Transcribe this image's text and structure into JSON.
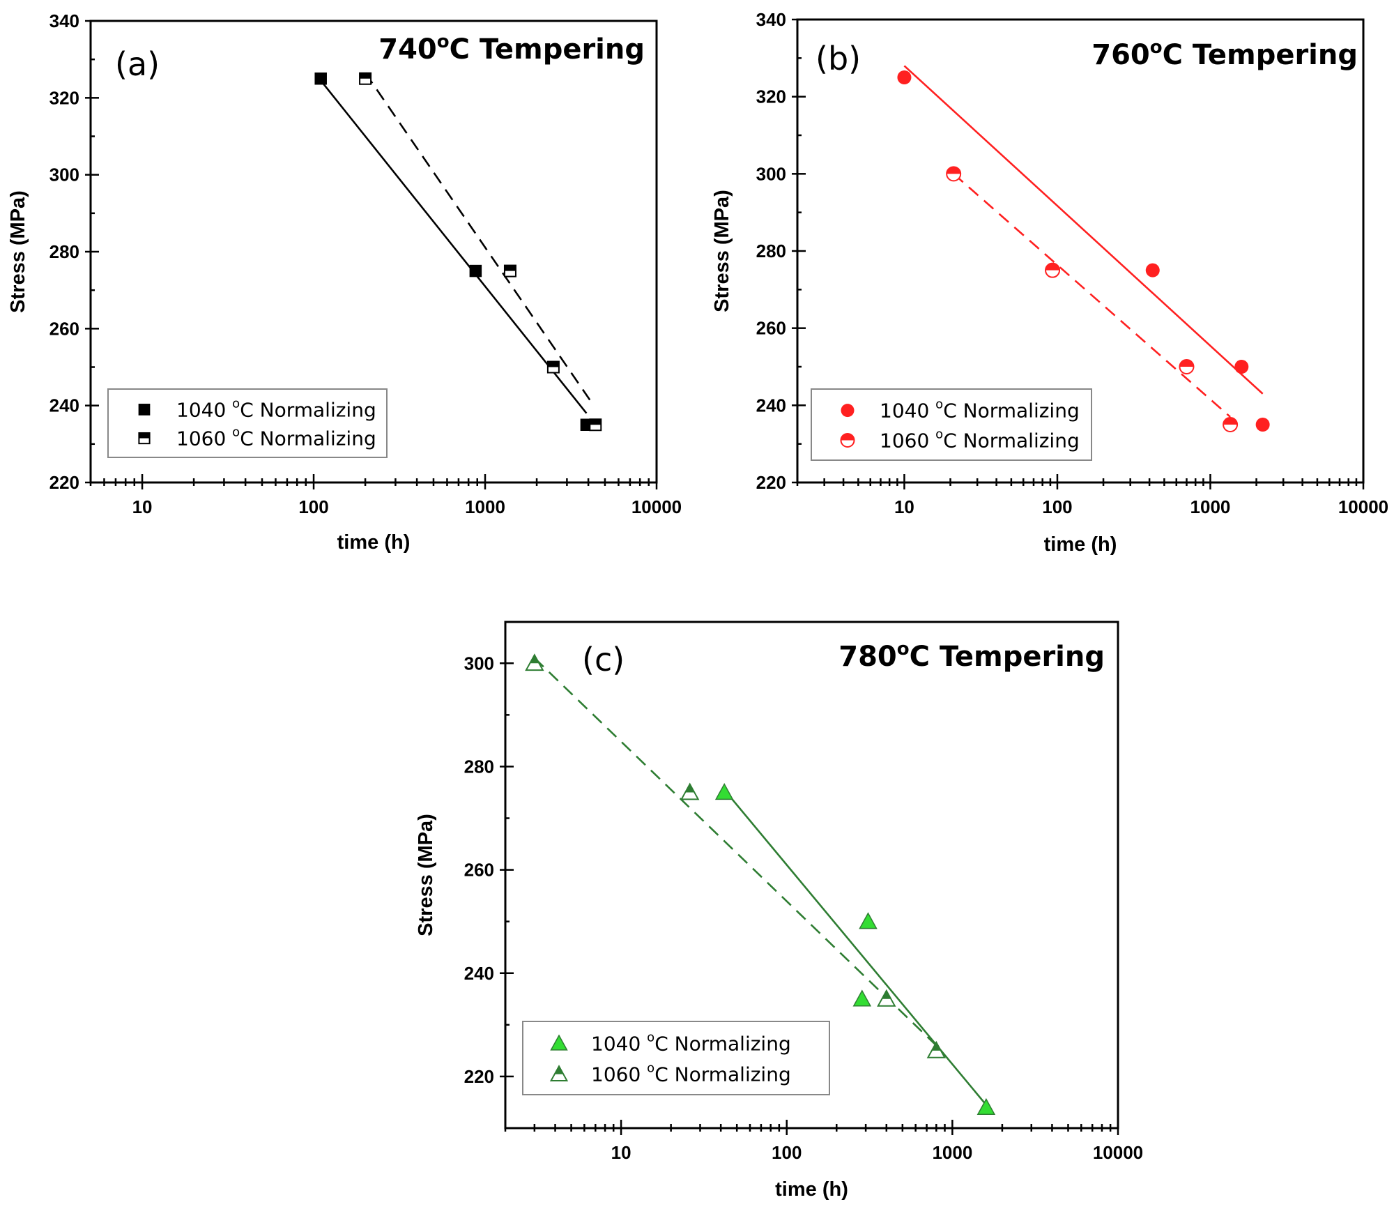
{
  "chart_data": [
    {
      "type": "scatter",
      "id": "a",
      "panel_label": "(a)",
      "title": "740°C Tempering",
      "title_main": "740",
      "title_sup": "o",
      "title_rest": "C Tempering",
      "xlabel": "time (h)",
      "ylabel": "Stress (MPa)",
      "xscale": "log",
      "xlim": [
        5,
        10000
      ],
      "ylim": [
        220,
        340
      ],
      "xticks": [
        10,
        100,
        1000,
        10000
      ],
      "xtick_labels": [
        "10",
        "100",
        "1000",
        "10000"
      ],
      "yticks": [
        220,
        240,
        260,
        280,
        300,
        320,
        340
      ],
      "ytick_labels": [
        "220",
        "240",
        "260",
        "280",
        "300",
        "320",
        "340"
      ],
      "color": "#000000",
      "marker": "square",
      "legend_position": "bottom-left",
      "series": [
        {
          "name": "1040 °C Normalizing",
          "num": "1040 ",
          "sup": "o",
          "rest": "C Normalizing",
          "fill": "full",
          "x": [
            110,
            880,
            3900
          ],
          "y": [
            325,
            275,
            235
          ],
          "fit": {
            "x": [
              110,
              3900
            ],
            "y": [
              324.5,
              238
            ],
            "style": "solid"
          }
        },
        {
          "name": "1060 °C Normalizing",
          "num": "1060 ",
          "sup": "o",
          "rest": "C Normalizing",
          "fill": "half",
          "x": [
            200,
            1400,
            2500,
            4400
          ],
          "y": [
            325,
            275,
            250,
            235
          ],
          "fit": {
            "x": [
              200,
              4300
            ],
            "y": [
              326.5,
              240
            ],
            "style": "dashed"
          }
        }
      ]
    },
    {
      "type": "scatter",
      "id": "b",
      "panel_label": "(b)",
      "title": "760°C Tempering",
      "title_main": "760",
      "title_sup": "o",
      "title_rest": "C Tempering",
      "xlabel": "time (h)",
      "ylabel": "Stress (MPa)",
      "xscale": "log",
      "xlim": [
        2,
        10000
      ],
      "ylim": [
        220,
        340
      ],
      "xticks": [
        10,
        100,
        1000,
        10000
      ],
      "xtick_labels": [
        "10",
        "100",
        "1000",
        "10000"
      ],
      "yticks": [
        220,
        240,
        260,
        280,
        300,
        320,
        340
      ],
      "ytick_labels": [
        "220",
        "240",
        "260",
        "280",
        "300",
        "320",
        "340"
      ],
      "color": "#ff2020",
      "marker": "circle",
      "legend_position": "bottom-left",
      "series": [
        {
          "name": "1040 °C Normalizing",
          "num": "1040 ",
          "sup": "o",
          "rest": "C Normalizing",
          "fill": "full",
          "x": [
            10,
            420,
            1600,
            2200
          ],
          "y": [
            325,
            275,
            250,
            235
          ],
          "fit": {
            "x": [
              10,
              2200
            ],
            "y": [
              328,
              243
            ],
            "style": "solid"
          }
        },
        {
          "name": "1060 °C Normalizing",
          "num": "1060 ",
          "sup": "o",
          "rest": "C Normalizing",
          "fill": "half",
          "x": [
            21,
            93,
            700,
            1350
          ],
          "y": [
            300,
            275,
            250,
            235
          ],
          "fit": {
            "x": [
              21,
              1350
            ],
            "y": [
              300,
              237
            ],
            "style": "dashed"
          }
        }
      ]
    },
    {
      "type": "scatter",
      "id": "c",
      "panel_label": "(c)",
      "title": "780°C Tempering",
      "title_main": "780",
      "title_sup": "o",
      "title_rest": "C Tempering",
      "xlabel": "time (h)",
      "ylabel": "Stress (MPa)",
      "xscale": "log",
      "xlim": [
        2,
        10000
      ],
      "ylim": [
        210,
        308
      ],
      "xticks": [
        10,
        100,
        1000,
        10000
      ],
      "xtick_labels": [
        "10",
        "100",
        "1000",
        "10000"
      ],
      "yticks": [
        220,
        240,
        260,
        280,
        300
      ],
      "ytick_labels": [
        "220",
        "240",
        "260",
        "280",
        "300"
      ],
      "color": "#2e7d32",
      "marker": "triangle",
      "legend_position": "bottom-left",
      "series": [
        {
          "name": "1040 °C Normalizing",
          "num": "1040 ",
          "sup": "o",
          "rest": "C Normalizing",
          "fill": "light",
          "x": [
            42,
            310,
            285,
            1600
          ],
          "y": [
            275,
            250,
            235,
            214
          ],
          "fit": {
            "x": [
              42,
              1600
            ],
            "y": [
              275.5,
              214.5
            ],
            "style": "solid"
          }
        },
        {
          "name": "1060 °C Normalizing",
          "num": "1060 ",
          "sup": "o",
          "rest": "C Normalizing",
          "fill": "half",
          "x": [
            3,
            26,
            400,
            800
          ],
          "y": [
            300,
            275,
            235,
            225
          ],
          "fit": {
            "x": [
              3,
              800
            ],
            "y": [
              301,
              226
            ],
            "style": "dashed"
          }
        }
      ]
    }
  ]
}
